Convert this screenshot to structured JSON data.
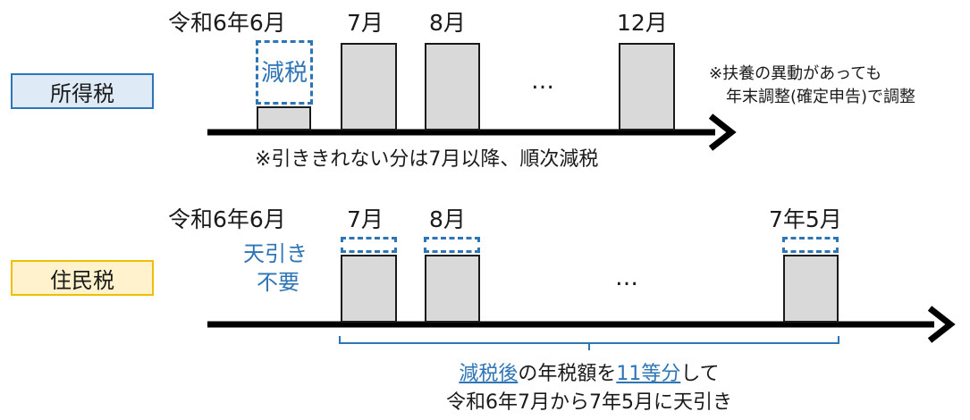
{
  "income_tax": {
    "label": "所得税",
    "months": [
      "令和6年6月",
      "7月",
      "8月",
      "12月"
    ],
    "reduction_label": "減税",
    "ellipsis": "…",
    "side_note_line1": "※扶養の異動があっても",
    "side_note_line2": "年末調整(確定申告)で調整",
    "bottom_note": "※引ききれない分は7月以降、順次減税"
  },
  "resident_tax": {
    "label": "住民税",
    "months": [
      "令和6年6月",
      "7月",
      "8月",
      "7年5月"
    ],
    "no_deduction_line1": "天引き",
    "no_deduction_line2": "不要",
    "ellipsis": "…",
    "note_part1": "減税後",
    "note_part2": "の年税額を",
    "note_part3": "11等分",
    "note_part4": "して",
    "note_line2": "令和6年7月から7年5月に天引き"
  },
  "colors": {
    "income_box_bg": "#deebf7",
    "income_box_border": "#2e75b6",
    "resident_box_bg": "#fff2cc",
    "resident_box_border": "#f0c000",
    "accent_blue": "#2e75b6",
    "bar_fill": "#d9d9d9"
  }
}
